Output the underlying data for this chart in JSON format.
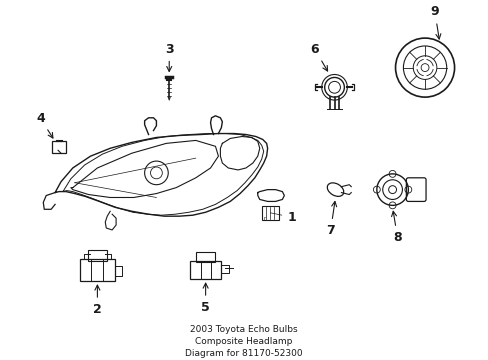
{
  "title": "2003 Toyota Echo Bulbs\nComposite Headlamp\nDiagram for 81170-52300",
  "background_color": "#ffffff",
  "line_color": "#1a1a1a",
  "figsize": [
    4.89,
    3.6
  ],
  "dpi": 100
}
